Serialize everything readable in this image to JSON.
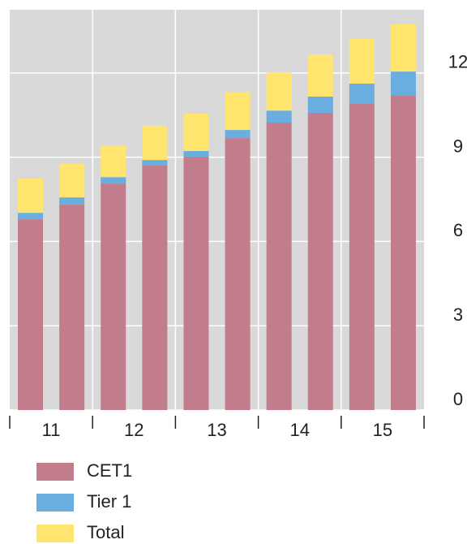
{
  "chart_data": {
    "type": "stacked-bar",
    "categories": [
      "11",
      null,
      "12",
      null,
      "13",
      null,
      "14",
      null,
      "15",
      null
    ],
    "series": [
      {
        "name": "CET1",
        "color": "#c17d8b",
        "values": [
          6.79,
          7.31,
          8.06,
          8.7,
          9.02,
          9.68,
          10.23,
          10.58,
          10.9,
          11.21
        ]
      },
      {
        "name": "Tier 1",
        "color": "#6aaee0",
        "values": [
          0.23,
          0.26,
          0.23,
          0.2,
          0.2,
          0.29,
          0.43,
          0.58,
          0.72,
          0.84
        ]
      },
      {
        "name": "Total",
        "color": "#ffe46e",
        "values": [
          1.22,
          1.19,
          1.13,
          1.22,
          1.33,
          1.36,
          1.36,
          1.5,
          1.59,
          1.68
        ]
      }
    ],
    "ylim": [
      0,
      14.25
    ],
    "yticks": [
      0,
      3,
      6,
      9,
      12
    ],
    "grid": true,
    "background": "#d9d9d9"
  }
}
